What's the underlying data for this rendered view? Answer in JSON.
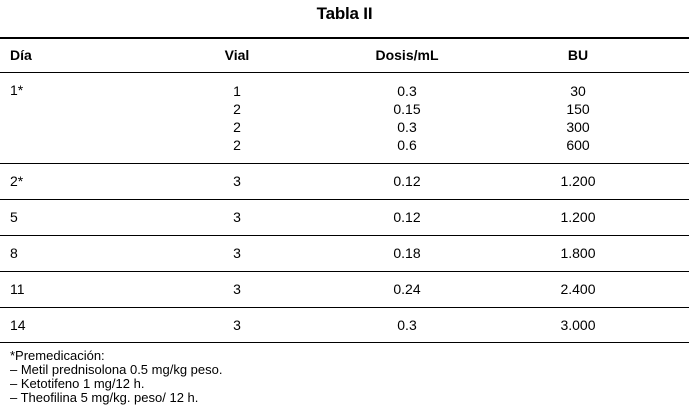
{
  "table": {
    "title": "Tabla II",
    "headers": {
      "dia": "Día",
      "vial": "Vial",
      "dosis": "Dosis/mL",
      "bu": "BU"
    },
    "first_group": {
      "dia": "1*",
      "vial": [
        "1",
        "2",
        "2",
        "2"
      ],
      "dosis": [
        "0.3",
        "0.15",
        "0.3",
        "0.6"
      ],
      "bu": [
        "30",
        "150",
        "300",
        "600"
      ]
    },
    "rows": [
      {
        "dia": "2*",
        "vial": "3",
        "dosis": "0.12",
        "bu": "1.200"
      },
      {
        "dia": "5",
        "vial": "3",
        "dosis": "0.12",
        "bu": "1.200"
      },
      {
        "dia": "8",
        "vial": "3",
        "dosis": "0.18",
        "bu": "1.800"
      },
      {
        "dia": "11",
        "vial": "3",
        "dosis": "0.24",
        "bu": "2.400"
      },
      {
        "dia": "14",
        "vial": "3",
        "dosis": "0.3",
        "bu": "3.000"
      }
    ]
  },
  "notes": {
    "heading": "*Premedicación:",
    "items": [
      "– Metil prednisolona 0.5 mg/kg peso.",
      "– Ketotifeno 1 mg/12 h.",
      "– Theofilina 5 mg/kg. peso/ 12 h."
    ]
  }
}
